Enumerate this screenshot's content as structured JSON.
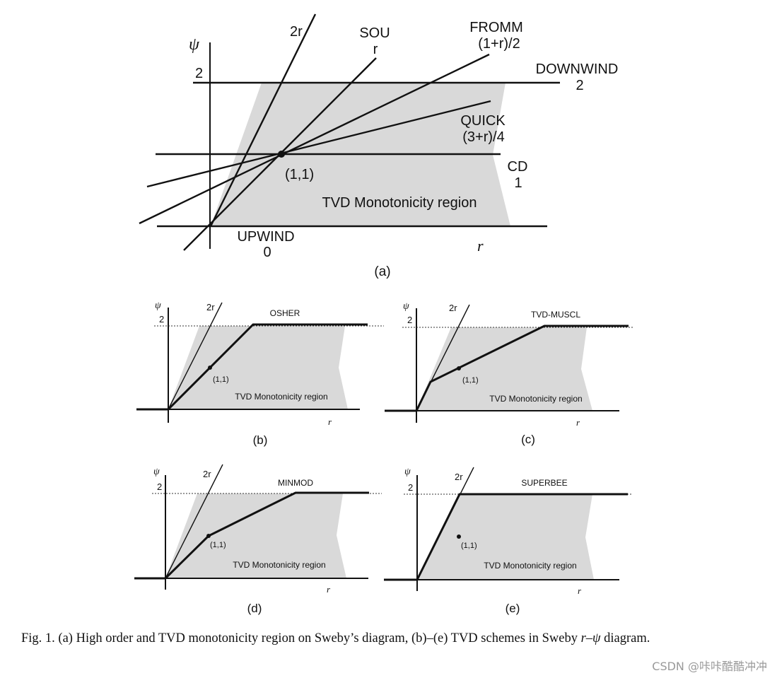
{
  "panels": {
    "a": {
      "axis_y": "ψ",
      "axis_x": "r",
      "tick_2": "2",
      "line_2r": "2r",
      "sou_name": "SOU",
      "sou_formula": "r",
      "fromm_name": "FROMM",
      "fromm_formula": "(1+r)/2",
      "downwind_name": "DOWNWIND",
      "downwind_value": "2",
      "quick_name": "QUICK",
      "quick_formula": "(3+r)/4",
      "point": "(1,1)",
      "cd_name": "CD",
      "cd_value": "1",
      "region": "TVD Monotonicity region",
      "upwind_name": "UPWIND",
      "upwind_value": "0",
      "label": "(a)"
    },
    "b": {
      "axis_y": "ψ",
      "axis_x": "r",
      "tick_2": "2",
      "line_2r": "2r",
      "scheme": "OSHER",
      "point": "(1,1)",
      "region": "TVD Monotonicity region",
      "label": "(b)"
    },
    "c": {
      "axis_y": "ψ",
      "axis_x": "r",
      "tick_2": "2",
      "line_2r": "2r",
      "scheme": "TVD-MUSCL",
      "point": "(1,1)",
      "region": "TVD Monotonicity region",
      "label": "(c)"
    },
    "d": {
      "axis_y": "ψ",
      "axis_x": "r",
      "tick_2": "2",
      "line_2r": "2r",
      "scheme": "MINMOD",
      "point": "(1,1)",
      "region": "TVD Monotonicity region",
      "label": "(d)"
    },
    "e": {
      "axis_y": "ψ",
      "axis_x": "r",
      "tick_2": "2",
      "line_2r": "2r",
      "scheme": "SUPERBEE",
      "point": "(1,1)",
      "region": "TVD Monotonicity region",
      "label": "(e)"
    }
  },
  "caption": {
    "lead": "Fig.  1. (a) High order and TVD monotonicity region on Sweby’s diagram, (b)–(e) TVD schemes in Sweby ",
    "math": "r–ψ",
    "tail": " diagram."
  },
  "watermark": "CSDN @咔咔酷酷冲冲"
}
